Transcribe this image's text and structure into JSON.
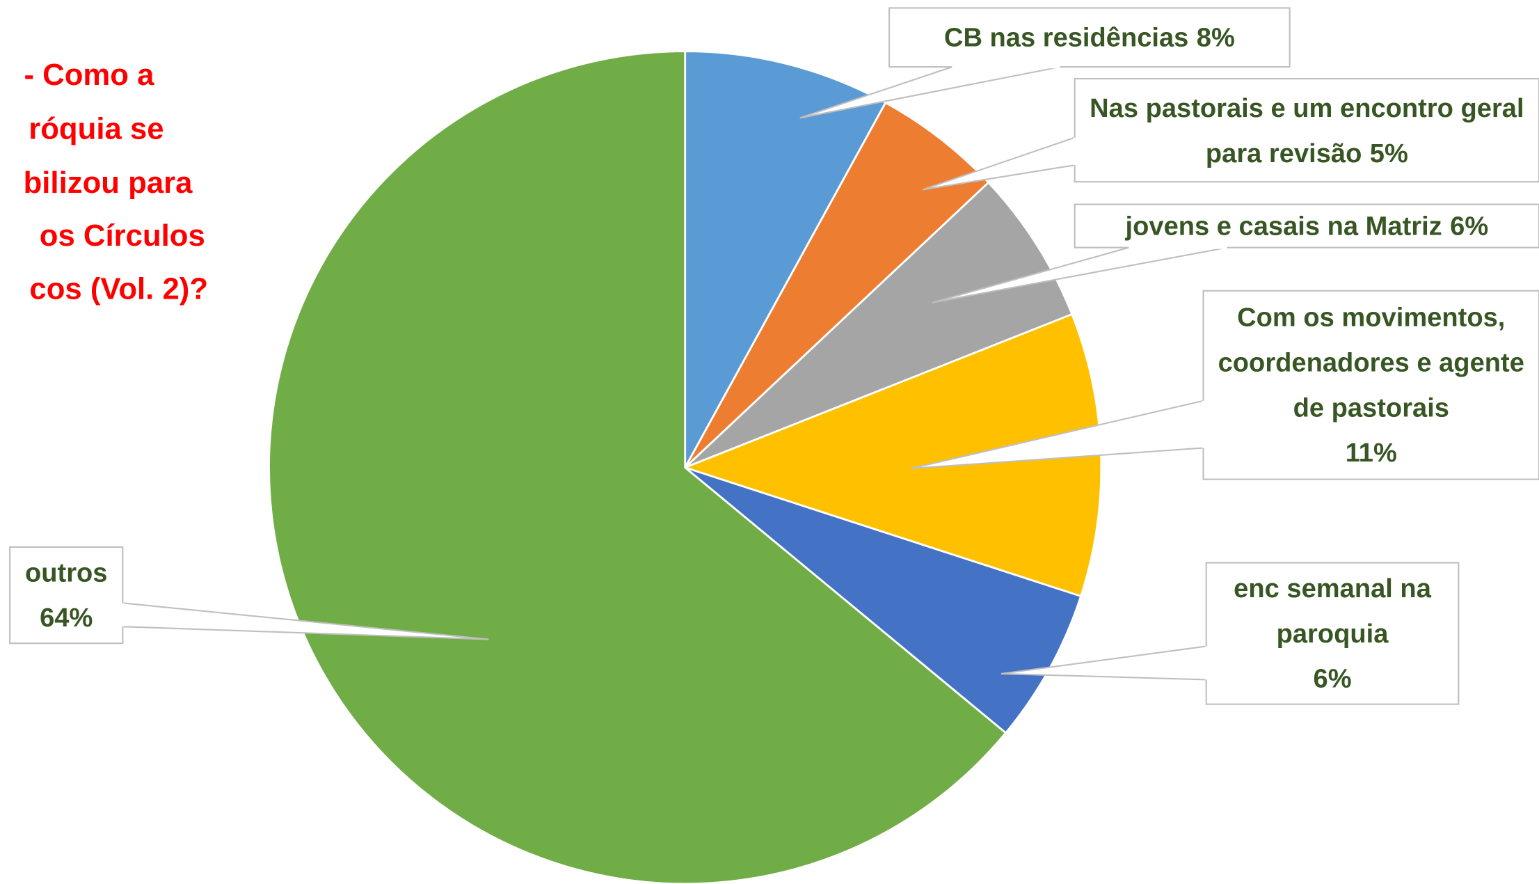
{
  "chart_data": {
    "type": "pie",
    "title_lines": [
      "- Como a",
      "róquia se",
      "bilizou para",
      "os Círculos",
      "cos (Vol. 2)?"
    ],
    "categories": [
      "CB nas residências",
      "Nas pastorais e um encontro geral para revisão",
      "jovens e casais na Matriz",
      "Com os movimentos, coordenadores e agente de pastorais",
      "enc semanal na paroquia",
      "outros"
    ],
    "values": [
      8,
      5,
      6,
      11,
      6,
      64
    ],
    "value_labels": [
      "8%",
      "5%",
      "6%",
      "11%",
      "6%",
      "64%"
    ],
    "colors": [
      "#5B9BD5",
      "#ED7D31",
      "#A5A5A5",
      "#FFC000",
      "#4472C4",
      "#70AD47"
    ]
  }
}
